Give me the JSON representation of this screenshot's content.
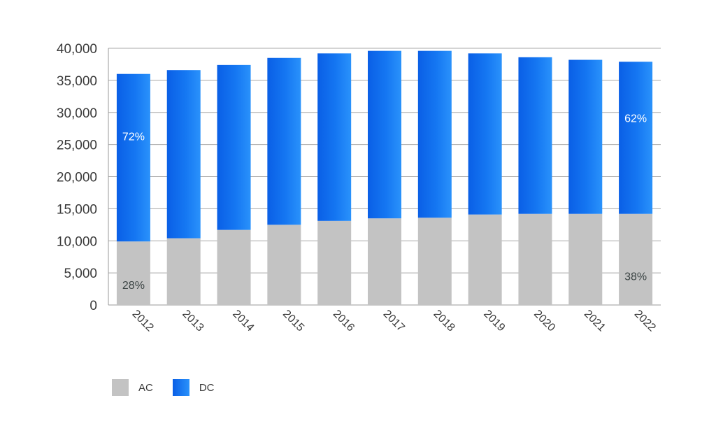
{
  "chart_data": {
    "type": "bar",
    "stacked": true,
    "categories": [
      "2012",
      "2013",
      "2014",
      "2015",
      "2016",
      "2017",
      "2018",
      "2019",
      "2020",
      "2021",
      "2022"
    ],
    "series": [
      {
        "name": "AC",
        "color": "#c3c3c3",
        "values": [
          9900,
          10400,
          11700,
          12500,
          13100,
          13500,
          13600,
          14100,
          14200,
          14200,
          14200
        ]
      },
      {
        "name": "DC",
        "color": "#1a7ff5",
        "values": [
          26100,
          26200,
          25700,
          26000,
          26100,
          26100,
          26000,
          25100,
          24400,
          24000,
          23700
        ]
      }
    ],
    "annotations": [
      {
        "category": "2012",
        "series": "DC",
        "text": "72%"
      },
      {
        "category": "2012",
        "series": "AC",
        "text": "28%"
      },
      {
        "category": "2022",
        "series": "DC",
        "text": "62%"
      },
      {
        "category": "2022",
        "series": "AC",
        "text": "38%"
      }
    ],
    "ylim": [
      0,
      40000
    ],
    "yticks": [
      "0",
      "5,000",
      "10,000",
      "15,000",
      "20,000",
      "25,000",
      "30,000",
      "35,000",
      "40,000"
    ],
    "grid": true,
    "legend_position": "bottom-left",
    "title": "",
    "xlabel": "",
    "ylabel": ""
  }
}
